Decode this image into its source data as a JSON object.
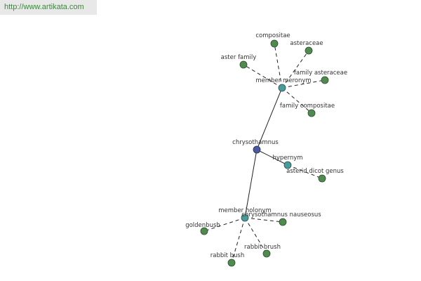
{
  "header": {
    "url": "http://www.artikata.com"
  },
  "nodes": [
    {
      "label": "chrysothamnus"
    },
    {
      "label": "member meronym"
    },
    {
      "label": "hypernym"
    },
    {
      "label": "member holonym"
    },
    {
      "label": "compositae"
    },
    {
      "label": "asteraceae"
    },
    {
      "label": "aster family"
    },
    {
      "label": "family asteraceae"
    },
    {
      "label": "family compositae"
    },
    {
      "label": "asterid dicot genus"
    },
    {
      "label": "chrysothamnus nauseosus"
    },
    {
      "label": "goldenbush"
    },
    {
      "label": "rabbit brush"
    },
    {
      "label": "rabbit bush"
    }
  ]
}
